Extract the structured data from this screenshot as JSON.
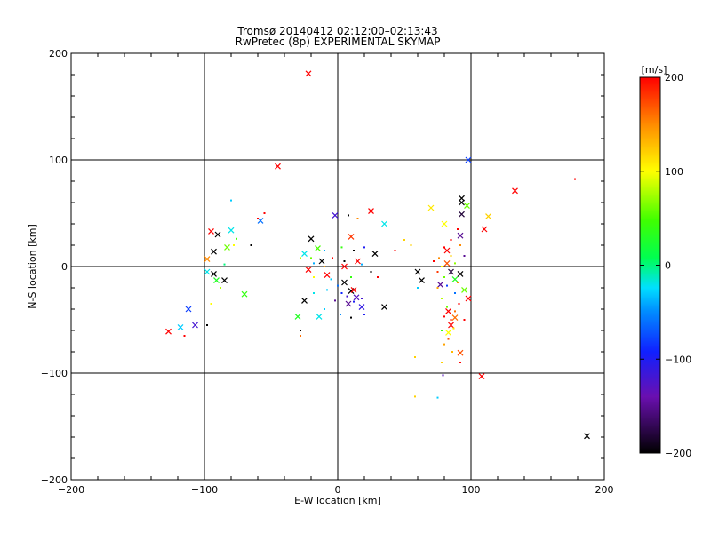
{
  "chart_data": {
    "type": "scatter",
    "title": "Tromsø 20140412 02:12:00–02:13:43",
    "subtitle": "RwPretec (8p) EXPERIMENTAL SKYMAP",
    "xlabel": "E-W location [km]",
    "ylabel": "N-S location [km]",
    "xlim": [
      -200,
      200
    ],
    "ylim": [
      -200,
      200
    ],
    "xticks": [
      -200,
      -100,
      0,
      100,
      200
    ],
    "yticks": [
      -200,
      -100,
      0,
      100,
      200
    ],
    "xtick_labels": [
      "−200",
      "−100",
      "0",
      "100",
      "200"
    ],
    "ytick_labels": [
      "−200",
      "−100",
      "0",
      "100",
      "200"
    ],
    "grid": true,
    "colorbar": {
      "label": "[m/s]",
      "range": [
        -200,
        200
      ],
      "ticks": [
        200,
        100,
        0,
        -100,
        -200
      ],
      "tick_labels": [
        "200",
        "100",
        "0",
        "−100",
        "−200"
      ],
      "colormap": "rainbow (black → purple → blue → cyan → green → yellow → red)"
    },
    "markers": {
      "cross": "vector velocity estimate (×)",
      "dot": "single-point velocity (•)"
    },
    "series": [
      {
        "marker": "cross",
        "points": [
          {
            "x": -22,
            "y": 181,
            "v": 200
          },
          {
            "x": -45,
            "y": 94,
            "v": 200
          },
          {
            "x": 98,
            "y": 100,
            "v": -80
          },
          {
            "x": 133,
            "y": 71,
            "v": 200
          },
          {
            "x": 93,
            "y": 64,
            "v": -200
          },
          {
            "x": 93,
            "y": 60,
            "v": -200
          },
          {
            "x": 93,
            "y": 49,
            "v": -180
          },
          {
            "x": 97,
            "y": 57,
            "v": 60
          },
          {
            "x": 113,
            "y": 47,
            "v": 120
          },
          {
            "x": 110,
            "y": 35,
            "v": 200
          },
          {
            "x": 70,
            "y": 55,
            "v": 110
          },
          {
            "x": 80,
            "y": 40,
            "v": 100
          },
          {
            "x": 25,
            "y": 52,
            "v": 200
          },
          {
            "x": 35,
            "y": 40,
            "v": -20
          },
          {
            "x": 28,
            "y": 12,
            "v": -200
          },
          {
            "x": 10,
            "y": 28,
            "v": 180
          },
          {
            "x": -2,
            "y": 48,
            "v": -120
          },
          {
            "x": -20,
            "y": 26,
            "v": -200
          },
          {
            "x": -95,
            "y": 33,
            "v": 200
          },
          {
            "x": -90,
            "y": 30,
            "v": -200
          },
          {
            "x": -80,
            "y": 34,
            "v": -20
          },
          {
            "x": -58,
            "y": 43,
            "v": -60
          },
          {
            "x": -83,
            "y": 18,
            "v": 60
          },
          {
            "x": -93,
            "y": 14,
            "v": -200
          },
          {
            "x": -98,
            "y": 7,
            "v": 150
          },
          {
            "x": -98,
            "y": -5,
            "v": -20
          },
          {
            "x": -93,
            "y": -7,
            "v": -200
          },
          {
            "x": -91,
            "y": -13,
            "v": 30
          },
          {
            "x": -85,
            "y": -13,
            "v": -200
          },
          {
            "x": -70,
            "y": -26,
            "v": 40
          },
          {
            "x": -112,
            "y": -40,
            "v": -80
          },
          {
            "x": -118,
            "y": -57,
            "v": -30
          },
          {
            "x": -107,
            "y": -55,
            "v": -120
          },
          {
            "x": -127,
            "y": -61,
            "v": 200
          },
          {
            "x": -15,
            "y": 17,
            "v": 50
          },
          {
            "x": -25,
            "y": 12,
            "v": -20
          },
          {
            "x": -12,
            "y": 5,
            "v": -200
          },
          {
            "x": -22,
            "y": -3,
            "v": 200
          },
          {
            "x": -8,
            "y": -8,
            "v": 200
          },
          {
            "x": 5,
            "y": -15,
            "v": -200
          },
          {
            "x": 10,
            "y": -23,
            "v": -200
          },
          {
            "x": 14,
            "y": -29,
            "v": -130
          },
          {
            "x": 8,
            "y": -35,
            "v": -150
          },
          {
            "x": 18,
            "y": -38,
            "v": -110
          },
          {
            "x": 35,
            "y": -38,
            "v": -200
          },
          {
            "x": -25,
            "y": -32,
            "v": -200
          },
          {
            "x": -30,
            "y": -47,
            "v": 30
          },
          {
            "x": -14,
            "y": -47,
            "v": -20
          },
          {
            "x": 12,
            "y": -22,
            "v": 200
          },
          {
            "x": 15,
            "y": 5,
            "v": 200
          },
          {
            "x": 60,
            "y": -5,
            "v": -200
          },
          {
            "x": 63,
            "y": -13,
            "v": -200
          },
          {
            "x": 77,
            "y": -17,
            "v": -150
          },
          {
            "x": 85,
            "y": -5,
            "v": -180
          },
          {
            "x": 82,
            "y": 3,
            "v": 170
          },
          {
            "x": 88,
            "y": -12,
            "v": 30
          },
          {
            "x": 92,
            "y": -7,
            "v": -200
          },
          {
            "x": 95,
            "y": -22,
            "v": 60
          },
          {
            "x": 98,
            "y": -30,
            "v": 200
          },
          {
            "x": 83,
            "y": -42,
            "v": 200
          },
          {
            "x": 85,
            "y": -55,
            "v": 200
          },
          {
            "x": 88,
            "y": -48,
            "v": 160
          },
          {
            "x": 83,
            "y": -62,
            "v": 100
          },
          {
            "x": 92,
            "y": -81,
            "v": 170
          },
          {
            "x": 108,
            "y": -103,
            "v": 200
          },
          {
            "x": 187,
            "y": -159,
            "v": -200
          },
          {
            "x": 92,
            "y": 29,
            "v": -150
          },
          {
            "x": 82,
            "y": 15,
            "v": 200
          },
          {
            "x": 5,
            "y": 0,
            "v": 200
          }
        ]
      },
      {
        "marker": "dot",
        "points": [
          {
            "x": -80,
            "y": 62,
            "v": -30
          },
          {
            "x": -55,
            "y": 50,
            "v": 200
          },
          {
            "x": -60,
            "y": 45,
            "v": 200
          },
          {
            "x": -78,
            "y": 20,
            "v": 100
          },
          {
            "x": -76,
            "y": 26,
            "v": 50
          },
          {
            "x": -65,
            "y": 20,
            "v": -200
          },
          {
            "x": -85,
            "y": 2,
            "v": 0
          },
          {
            "x": -88,
            "y": -20,
            "v": 80
          },
          {
            "x": -95,
            "y": -35,
            "v": 100
          },
          {
            "x": -98,
            "y": -55,
            "v": -200
          },
          {
            "x": -115,
            "y": -65,
            "v": 200
          },
          {
            "x": 178,
            "y": 82,
            "v": 200
          },
          {
            "x": 8,
            "y": 48,
            "v": -200
          },
          {
            "x": 15,
            "y": 45,
            "v": 150
          },
          {
            "x": 50,
            "y": 25,
            "v": 120
          },
          {
            "x": 43,
            "y": 15,
            "v": 200
          },
          {
            "x": 12,
            "y": 15,
            "v": -200
          },
          {
            "x": 20,
            "y": 18,
            "v": -100
          },
          {
            "x": 3,
            "y": 18,
            "v": 40
          },
          {
            "x": -10,
            "y": 15,
            "v": -40
          },
          {
            "x": -20,
            "y": 8,
            "v": 60
          },
          {
            "x": -28,
            "y": 8,
            "v": 80
          },
          {
            "x": -18,
            "y": 3,
            "v": -40
          },
          {
            "x": -4,
            "y": 8,
            "v": 200
          },
          {
            "x": 5,
            "y": 5,
            "v": -200
          },
          {
            "x": 18,
            "y": 2,
            "v": -40
          },
          {
            "x": 25,
            "y": -5,
            "v": -200
          },
          {
            "x": 30,
            "y": -10,
            "v": 200
          },
          {
            "x": -5,
            "y": -12,
            "v": -30
          },
          {
            "x": 0,
            "y": -18,
            "v": -60
          },
          {
            "x": -8,
            "y": -22,
            "v": -30
          },
          {
            "x": 3,
            "y": -25,
            "v": -90
          },
          {
            "x": 7,
            "y": -28,
            "v": -120
          },
          {
            "x": -2,
            "y": -32,
            "v": -150
          },
          {
            "x": 12,
            "y": -33,
            "v": -100
          },
          {
            "x": 18,
            "y": -30,
            "v": -120
          },
          {
            "x": 20,
            "y": -45,
            "v": -100
          },
          {
            "x": 10,
            "y": -48,
            "v": -200
          },
          {
            "x": 2,
            "y": -45,
            "v": -50
          },
          {
            "x": -10,
            "y": -40,
            "v": -30
          },
          {
            "x": -18,
            "y": -25,
            "v": -20
          },
          {
            "x": -28,
            "y": -60,
            "v": -200
          },
          {
            "x": -28,
            "y": -65,
            "v": 160
          },
          {
            "x": -18,
            "y": -10,
            "v": 100
          },
          {
            "x": -10,
            "y": 0,
            "v": 140
          },
          {
            "x": 10,
            "y": -10,
            "v": 40
          },
          {
            "x": 55,
            "y": 20,
            "v": 120
          },
          {
            "x": 60,
            "y": -20,
            "v": -30
          },
          {
            "x": 58,
            "y": -85,
            "v": 120
          },
          {
            "x": 58,
            "y": -122,
            "v": 120
          },
          {
            "x": 75,
            "y": -123,
            "v": -30
          },
          {
            "x": 78,
            "y": -90,
            "v": 120
          },
          {
            "x": 80,
            "y": -73,
            "v": 140
          },
          {
            "x": 79,
            "y": -102,
            "v": -130
          },
          {
            "x": 78,
            "y": -60,
            "v": 40
          },
          {
            "x": 80,
            "y": -47,
            "v": 200
          },
          {
            "x": 82,
            "y": -38,
            "v": 60
          },
          {
            "x": 78,
            "y": -30,
            "v": 80
          },
          {
            "x": 75,
            "y": -20,
            "v": 140
          },
          {
            "x": 80,
            "y": -10,
            "v": 60
          },
          {
            "x": 78,
            "y": 0,
            "v": 100
          },
          {
            "x": 76,
            "y": 8,
            "v": 150
          },
          {
            "x": 80,
            "y": 18,
            "v": 200
          },
          {
            "x": 85,
            "y": 25,
            "v": 200
          },
          {
            "x": 85,
            "y": 10,
            "v": 120
          },
          {
            "x": 88,
            "y": 3,
            "v": 70
          },
          {
            "x": 90,
            "y": -15,
            "v": 150
          },
          {
            "x": 88,
            "y": -25,
            "v": -60
          },
          {
            "x": 91,
            "y": -35,
            "v": 200
          },
          {
            "x": 88,
            "y": -42,
            "v": 160
          },
          {
            "x": 85,
            "y": -50,
            "v": 190
          },
          {
            "x": 87,
            "y": -58,
            "v": 110
          },
          {
            "x": 83,
            "y": -68,
            "v": 170
          },
          {
            "x": 86,
            "y": -80,
            "v": 130
          },
          {
            "x": 92,
            "y": -90,
            "v": 200
          },
          {
            "x": 95,
            "y": 10,
            "v": -150
          },
          {
            "x": 92,
            "y": 20,
            "v": 150
          },
          {
            "x": 90,
            "y": 35,
            "v": 200
          },
          {
            "x": 95,
            "y": -50,
            "v": 200
          },
          {
            "x": 82,
            "y": -18,
            "v": -80
          },
          {
            "x": 72,
            "y": 5,
            "v": 200
          },
          {
            "x": 75,
            "y": -5,
            "v": 180
          }
        ]
      }
    ]
  }
}
